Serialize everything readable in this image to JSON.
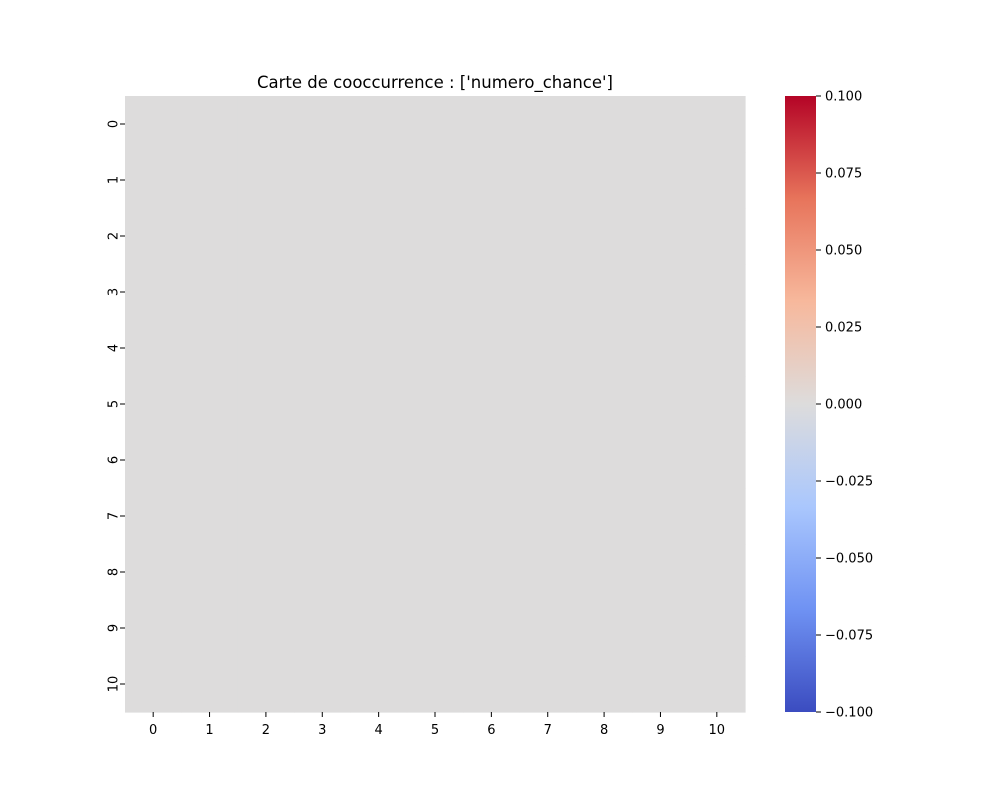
{
  "chart_data": {
    "type": "heatmap",
    "title": "Carte de cooccurrence : ['numero_chance']",
    "x_categories": [
      "0",
      "1",
      "2",
      "3",
      "4",
      "5",
      "6",
      "7",
      "8",
      "9",
      "10"
    ],
    "y_categories": [
      "0",
      "1",
      "2",
      "3",
      "4",
      "5",
      "6",
      "7",
      "8",
      "9",
      "10"
    ],
    "values": [
      [
        0,
        0,
        0,
        0,
        0,
        0,
        0,
        0,
        0,
        0,
        0
      ],
      [
        0,
        0,
        0,
        0,
        0,
        0,
        0,
        0,
        0,
        0,
        0
      ],
      [
        0,
        0,
        0,
        0,
        0,
        0,
        0,
        0,
        0,
        0,
        0
      ],
      [
        0,
        0,
        0,
        0,
        0,
        0,
        0,
        0,
        0,
        0,
        0
      ],
      [
        0,
        0,
        0,
        0,
        0,
        0,
        0,
        0,
        0,
        0,
        0
      ],
      [
        0,
        0,
        0,
        0,
        0,
        0,
        0,
        0,
        0,
        0,
        0
      ],
      [
        0,
        0,
        0,
        0,
        0,
        0,
        0,
        0,
        0,
        0,
        0
      ],
      [
        0,
        0,
        0,
        0,
        0,
        0,
        0,
        0,
        0,
        0,
        0
      ],
      [
        0,
        0,
        0,
        0,
        0,
        0,
        0,
        0,
        0,
        0,
        0
      ],
      [
        0,
        0,
        0,
        0,
        0,
        0,
        0,
        0,
        0,
        0,
        0
      ],
      [
        0,
        0,
        0,
        0,
        0,
        0,
        0,
        0,
        0,
        0,
        0
      ]
    ],
    "colormap": "coolwarm",
    "colorbar": {
      "range": [
        -0.1,
        0.1
      ],
      "ticks": [
        0.1,
        0.075,
        0.05,
        0.025,
        0.0,
        -0.025,
        -0.05,
        -0.075,
        -0.1
      ],
      "tick_labels": [
        "0.100",
        "0.075",
        "0.050",
        "0.025",
        "0.000",
        "−0.025",
        "−0.050",
        "−0.075",
        "−0.100"
      ],
      "stops": [
        "#3b4cc0",
        "#6f92f3",
        "#aac7fd",
        "#dddcdc",
        "#f7b89c",
        "#e7745b",
        "#b40426"
      ]
    },
    "cell_color": "#dddcdc",
    "grid": false
  }
}
